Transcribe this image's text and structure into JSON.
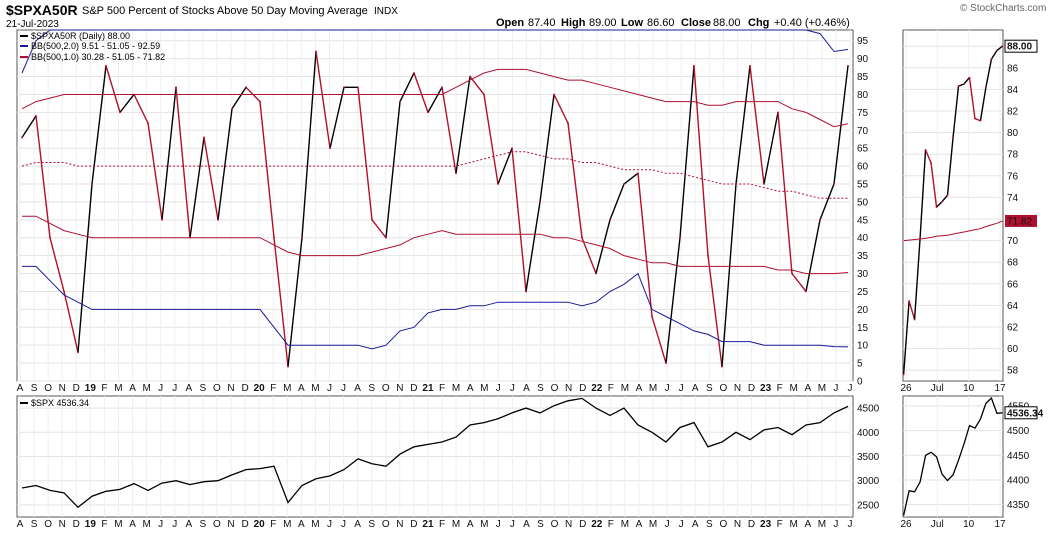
{
  "header": {
    "symbol": "$SPXA50R",
    "description": "S&P 500 Percent of Stocks Above 50 Day Moving Average",
    "exchange": "INDX",
    "date": "21-Jul-2023",
    "open_label": "Open",
    "open": "87.40",
    "high_label": "High",
    "high": "89.00",
    "low_label": "Low",
    "low": "86.60",
    "close_label": "Close",
    "close": "88.00",
    "chg_label": "Chg",
    "chg": "+0.40 (+0.46%)",
    "watermark": "© StockCharts.com"
  },
  "legend": [
    {
      "text": "$SPXA50R (Daily) 88.00",
      "color": "#000000"
    },
    {
      "text": "BB(500,2.0) 9.51 - 51.05 - 92.59",
      "color": "#1a1a9a"
    },
    {
      "text": "BB(500,1.0) 30.28 - 51.05 - 71.82",
      "color": "#b01030"
    }
  ],
  "bottom_legend": {
    "text": "$SPX 4536.34"
  },
  "colors": {
    "up": "#000000",
    "down": "#b0102c",
    "bb2": "#1a1a9a",
    "bb1": "#b01030",
    "grid": "#e3e3e3",
    "frame": "#555555"
  },
  "chart_data": [
    {
      "type": "line",
      "title": "$SPXA50R S&P 500 Percent of Stocks Above 50 Day Moving Average",
      "ylim": [
        0,
        98
      ],
      "y_ticks": [
        0,
        5,
        10,
        15,
        20,
        25,
        30,
        35,
        40,
        45,
        50,
        55,
        60,
        65,
        70,
        75,
        80,
        85,
        90,
        95
      ],
      "x_ticks": [
        "A",
        "S",
        "O",
        "N",
        "D",
        "19",
        "F",
        "M",
        "A",
        "M",
        "J",
        "J",
        "A",
        "S",
        "O",
        "N",
        "D",
        "20",
        "F",
        "M",
        "A",
        "M",
        "J",
        "J",
        "A",
        "S",
        "O",
        "N",
        "D",
        "21",
        "F",
        "M",
        "A",
        "M",
        "J",
        "J",
        "A",
        "S",
        "O",
        "N",
        "D",
        "22",
        "F",
        "M",
        "A",
        "M",
        "J",
        "J",
        "A",
        "S",
        "O",
        "N",
        "D",
        "23",
        "F",
        "M",
        "A",
        "M",
        "J",
        "J"
      ],
      "x": [
        "2018-08",
        "2018-09",
        "2018-10",
        "2018-11",
        "2018-12",
        "2019-01",
        "2019-02",
        "2019-03",
        "2019-04",
        "2019-05",
        "2019-06",
        "2019-07",
        "2019-08",
        "2019-09",
        "2019-10",
        "2019-11",
        "2019-12",
        "2020-01",
        "2020-02",
        "2020-03",
        "2020-04",
        "2020-05",
        "2020-06",
        "2020-07",
        "2020-08",
        "2020-09",
        "2020-10",
        "2020-11",
        "2020-12",
        "2021-01",
        "2021-02",
        "2021-03",
        "2021-04",
        "2021-05",
        "2021-06",
        "2021-07",
        "2021-08",
        "2021-09",
        "2021-10",
        "2021-11",
        "2021-12",
        "2022-01",
        "2022-02",
        "2022-03",
        "2022-04",
        "2022-05",
        "2022-06",
        "2022-07",
        "2022-08",
        "2022-09",
        "2022-10",
        "2022-11",
        "2022-12",
        "2023-01",
        "2023-02",
        "2023-03",
        "2023-04",
        "2023-05",
        "2023-06",
        "2023-07"
      ],
      "series": [
        {
          "name": "$SPXA50R (Daily)",
          "values": [
            68,
            74,
            40,
            25,
            8,
            55,
            88,
            75,
            80,
            72,
            45,
            82,
            40,
            68,
            45,
            76,
            82,
            78,
            40,
            4,
            40,
            92,
            65,
            82,
            82,
            45,
            40,
            78,
            86,
            75,
            82,
            58,
            85,
            80,
            55,
            65,
            25,
            50,
            80,
            72,
            40,
            30,
            45,
            55,
            58,
            18,
            5,
            40,
            88,
            35,
            4,
            55,
            88,
            55,
            75,
            30,
            25,
            45,
            55,
            88
          ]
        },
        {
          "name": "BB(500,2.0) upper",
          "values": [
            86,
            95,
            98,
            98,
            98,
            98,
            98,
            98,
            98,
            98,
            98,
            98,
            98,
            98,
            98,
            98,
            98,
            98,
            98,
            98,
            98,
            98,
            98,
            98,
            98,
            98,
            98,
            98,
            98,
            98,
            98,
            98,
            98,
            98,
            98,
            98,
            98,
            98,
            98,
            98,
            98,
            98,
            98,
            98,
            98,
            98,
            98,
            98,
            98,
            98,
            98,
            98,
            98,
            98,
            98,
            98,
            98,
            97,
            92,
            92.59
          ]
        },
        {
          "name": "BB(500,2.0) lower",
          "values": [
            32,
            32,
            28,
            24,
            22,
            20,
            20,
            20,
            20,
            20,
            20,
            20,
            20,
            20,
            20,
            20,
            20,
            20,
            15,
            10,
            10,
            10,
            10,
            10,
            10,
            9,
            10,
            14,
            15,
            19,
            20,
            20,
            21,
            21,
            22,
            22,
            22,
            22,
            22,
            22,
            21,
            22,
            25,
            27,
            30,
            20,
            18,
            16,
            14,
            13,
            11,
            11,
            11,
            10,
            10,
            10,
            10,
            10,
            9.6,
            9.51
          ]
        },
        {
          "name": "BB(500,1.0) upper",
          "values": [
            76,
            78,
            79,
            80,
            80,
            80,
            80,
            80,
            80,
            80,
            80,
            80,
            80,
            80,
            80,
            80,
            80,
            80,
            80,
            80,
            80,
            80,
            80,
            80,
            80,
            80,
            80,
            80,
            80,
            80,
            80,
            82,
            84,
            86,
            87,
            87,
            87,
            86,
            85,
            84,
            84,
            83,
            82,
            81,
            80,
            79,
            78,
            78,
            78,
            77,
            77,
            78,
            78,
            78,
            78,
            76,
            75,
            73,
            71,
            71.82
          ]
        },
        {
          "name": "BB(500,1.0) middle",
          "values": [
            60,
            61,
            61,
            61,
            60,
            60,
            60,
            60,
            60,
            60,
            60,
            60,
            60,
            60,
            60,
            60,
            60,
            60,
            60,
            60,
            60,
            60,
            60,
            60,
            60,
            60,
            60,
            60,
            60,
            60,
            60,
            60,
            61,
            62,
            63,
            64,
            64,
            63,
            62,
            62,
            61,
            61,
            60,
            59,
            59,
            59,
            58,
            58,
            57,
            56,
            55,
            55,
            55,
            54,
            53,
            53,
            52,
            51,
            51,
            51.05
          ]
        },
        {
          "name": "BB(500,1.0) lower",
          "values": [
            46,
            46,
            44,
            42,
            41,
            40,
            40,
            40,
            40,
            40,
            40,
            40,
            40,
            40,
            40,
            40,
            40,
            40,
            38,
            36,
            35,
            35,
            35,
            35,
            35,
            36,
            37,
            38,
            40,
            41,
            42,
            41,
            41,
            41,
            41,
            41,
            41,
            41,
            40,
            40,
            39,
            38,
            37,
            35,
            34,
            33,
            33,
            32,
            32,
            32,
            32,
            32,
            32,
            32,
            31,
            31,
            30,
            30,
            30,
            30.28
          ]
        }
      ]
    },
    {
      "type": "line",
      "title": "$SPX",
      "ylim": [
        2250,
        4750
      ],
      "y_ticks": [
        2500,
        3000,
        3500,
        4000,
        4500
      ],
      "x_ticks": [
        "A",
        "S",
        "O",
        "N",
        "D",
        "19",
        "F",
        "M",
        "A",
        "M",
        "J",
        "J",
        "A",
        "S",
        "O",
        "N",
        "D",
        "20",
        "F",
        "M",
        "A",
        "M",
        "J",
        "J",
        "A",
        "S",
        "O",
        "N",
        "D",
        "21",
        "F",
        "M",
        "A",
        "M",
        "J",
        "J",
        "A",
        "S",
        "O",
        "N",
        "D",
        "22",
        "F",
        "M",
        "A",
        "M",
        "J",
        "J",
        "A",
        "S",
        "O",
        "N",
        "D",
        "23",
        "F",
        "M",
        "A",
        "M",
        "J",
        "J"
      ],
      "x": [
        "2018-08",
        "2018-09",
        "2018-10",
        "2018-11",
        "2018-12",
        "2019-01",
        "2019-02",
        "2019-03",
        "2019-04",
        "2019-05",
        "2019-06",
        "2019-07",
        "2019-08",
        "2019-09",
        "2019-10",
        "2019-11",
        "2019-12",
        "2020-01",
        "2020-02",
        "2020-03",
        "2020-04",
        "2020-05",
        "2020-06",
        "2020-07",
        "2020-08",
        "2020-09",
        "2020-10",
        "2020-11",
        "2020-12",
        "2021-01",
        "2021-02",
        "2021-03",
        "2021-04",
        "2021-05",
        "2021-06",
        "2021-07",
        "2021-08",
        "2021-09",
        "2021-10",
        "2021-11",
        "2021-12",
        "2022-01",
        "2022-02",
        "2022-03",
        "2022-04",
        "2022-05",
        "2022-06",
        "2022-07",
        "2022-08",
        "2022-09",
        "2022-10",
        "2022-11",
        "2022-12",
        "2023-01",
        "2023-02",
        "2023-03",
        "2023-04",
        "2023-05",
        "2023-06",
        "2023-07"
      ],
      "series": [
        {
          "name": "$SPX",
          "values": [
            2850,
            2900,
            2800,
            2750,
            2450,
            2680,
            2780,
            2820,
            2940,
            2800,
            2950,
            3000,
            2920,
            2980,
            3000,
            3120,
            3230,
            3250,
            3300,
            2550,
            2900,
            3040,
            3100,
            3230,
            3450,
            3350,
            3300,
            3550,
            3700,
            3750,
            3800,
            3900,
            4150,
            4200,
            4280,
            4400,
            4500,
            4400,
            4550,
            4650,
            4700,
            4500,
            4350,
            4500,
            4150,
            4000,
            3800,
            4100,
            4200,
            3700,
            3800,
            4000,
            3850,
            4050,
            4100,
            3950,
            4150,
            4200,
            4400,
            4536
          ]
        }
      ]
    },
    {
      "type": "line",
      "title": "$SPXA50R recent",
      "ylim": [
        57,
        89.5
      ],
      "y_ticks": [
        58,
        60,
        62,
        64,
        66,
        68,
        70,
        72,
        74,
        76,
        78,
        80,
        82,
        84,
        86,
        88
      ],
      "x_ticks": [
        "26",
        "Jul",
        "10",
        "17"
      ],
      "x": [
        "Jun 26",
        "Jun 27",
        "Jun 28",
        "Jun 29",
        "Jun 30",
        "Jul 3",
        "Jul 5",
        "Jul 6",
        "Jul 7",
        "Jul 10",
        "Jul 11",
        "Jul 12",
        "Jul 13",
        "Jul 14",
        "Jul 17",
        "Jul 18",
        "Jul 19",
        "Jul 20",
        "Jul 21"
      ],
      "series": [
        {
          "name": "$SPXA50R",
          "values": [
            57.6,
            64.4,
            62.7,
            70.2,
            78.4,
            77.2,
            73.1,
            73.6,
            74.2,
            79.5,
            84.3,
            84.5,
            85.1,
            81.3,
            81.1,
            84.2,
            86.8,
            87.6,
            88.0
          ]
        },
        {
          "name": "BB(500,1.0) upper",
          "values": [
            70.0,
            70.05,
            70.1,
            70.15,
            70.2,
            70.3,
            70.4,
            70.45,
            70.5,
            70.6,
            70.7,
            70.8,
            70.9,
            71.0,
            71.1,
            71.3,
            71.45,
            71.6,
            71.82
          ]
        }
      ],
      "price_label": "88.00",
      "band_label": "71.82"
    },
    {
      "type": "line",
      "title": "$SPX recent",
      "ylim": [
        4325,
        4570
      ],
      "y_ticks": [
        4350,
        4400,
        4450,
        4500,
        4550
      ],
      "x_ticks": [
        "26",
        "Jul",
        "10",
        "17"
      ],
      "x": [
        "Jun 26",
        "Jun 27",
        "Jun 28",
        "Jun 29",
        "Jun 30",
        "Jul 3",
        "Jul 5",
        "Jul 6",
        "Jul 7",
        "Jul 10",
        "Jul 11",
        "Jul 12",
        "Jul 13",
        "Jul 14",
        "Jul 17",
        "Jul 18",
        "Jul 19",
        "Jul 20",
        "Jul 21"
      ],
      "series": [
        {
          "name": "$SPX",
          "values": [
            4328,
            4378,
            4376,
            4396,
            4450,
            4456,
            4447,
            4412,
            4399,
            4410,
            4440,
            4473,
            4510,
            4505,
            4523,
            4555,
            4566,
            4535,
            4536
          ]
        }
      ],
      "price_label": "4536.34"
    }
  ]
}
